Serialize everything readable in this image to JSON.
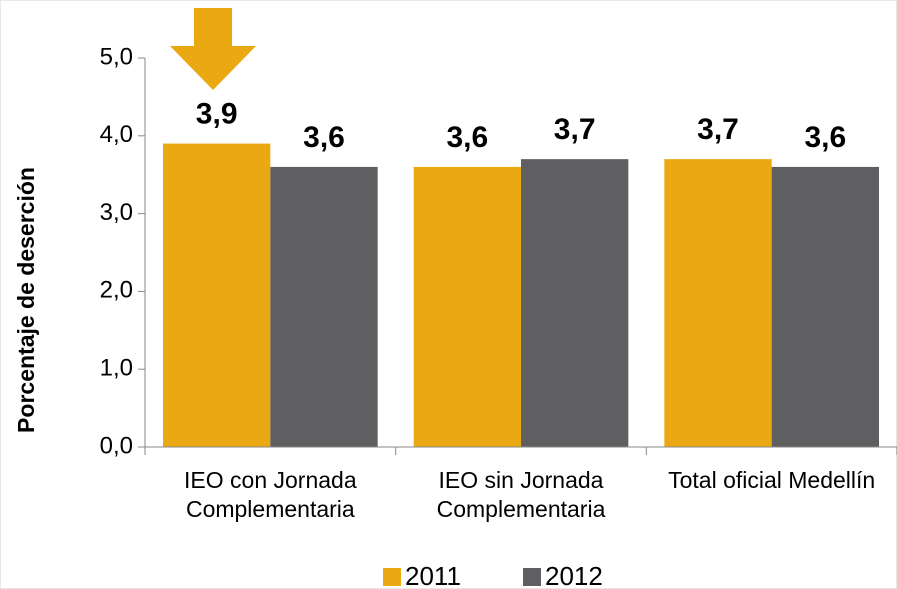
{
  "chart_data": {
    "type": "bar",
    "y_label": "Porcentaje de deserción",
    "categories": [
      "IEO con Jornada Complementaria",
      "IEO sin Jornada Complementaria",
      "Total oficial Medellín"
    ],
    "series": [
      {
        "name": "2011",
        "color": "#EAA912",
        "values": [
          3.9,
          3.6,
          3.7
        ],
        "value_labels": [
          "3,9",
          "3,6",
          "3,7"
        ]
      },
      {
        "name": "2012",
        "color": "#5F5F61",
        "values": [
          3.6,
          3.7,
          3.6
        ],
        "value_labels": [
          "3,6",
          "3,7",
          "3,6"
        ]
      }
    ],
    "ylim": [
      0,
      5
    ],
    "yticks": [
      {
        "value": 0,
        "label": "0,0"
      },
      {
        "value": 1,
        "label": "1,0"
      },
      {
        "value": 2,
        "label": "2,0"
      },
      {
        "value": 3,
        "label": "3,0"
      },
      {
        "value": 4,
        "label": "4,0"
      },
      {
        "value": 5,
        "label": "5,0"
      }
    ],
    "legend": "bottom"
  }
}
